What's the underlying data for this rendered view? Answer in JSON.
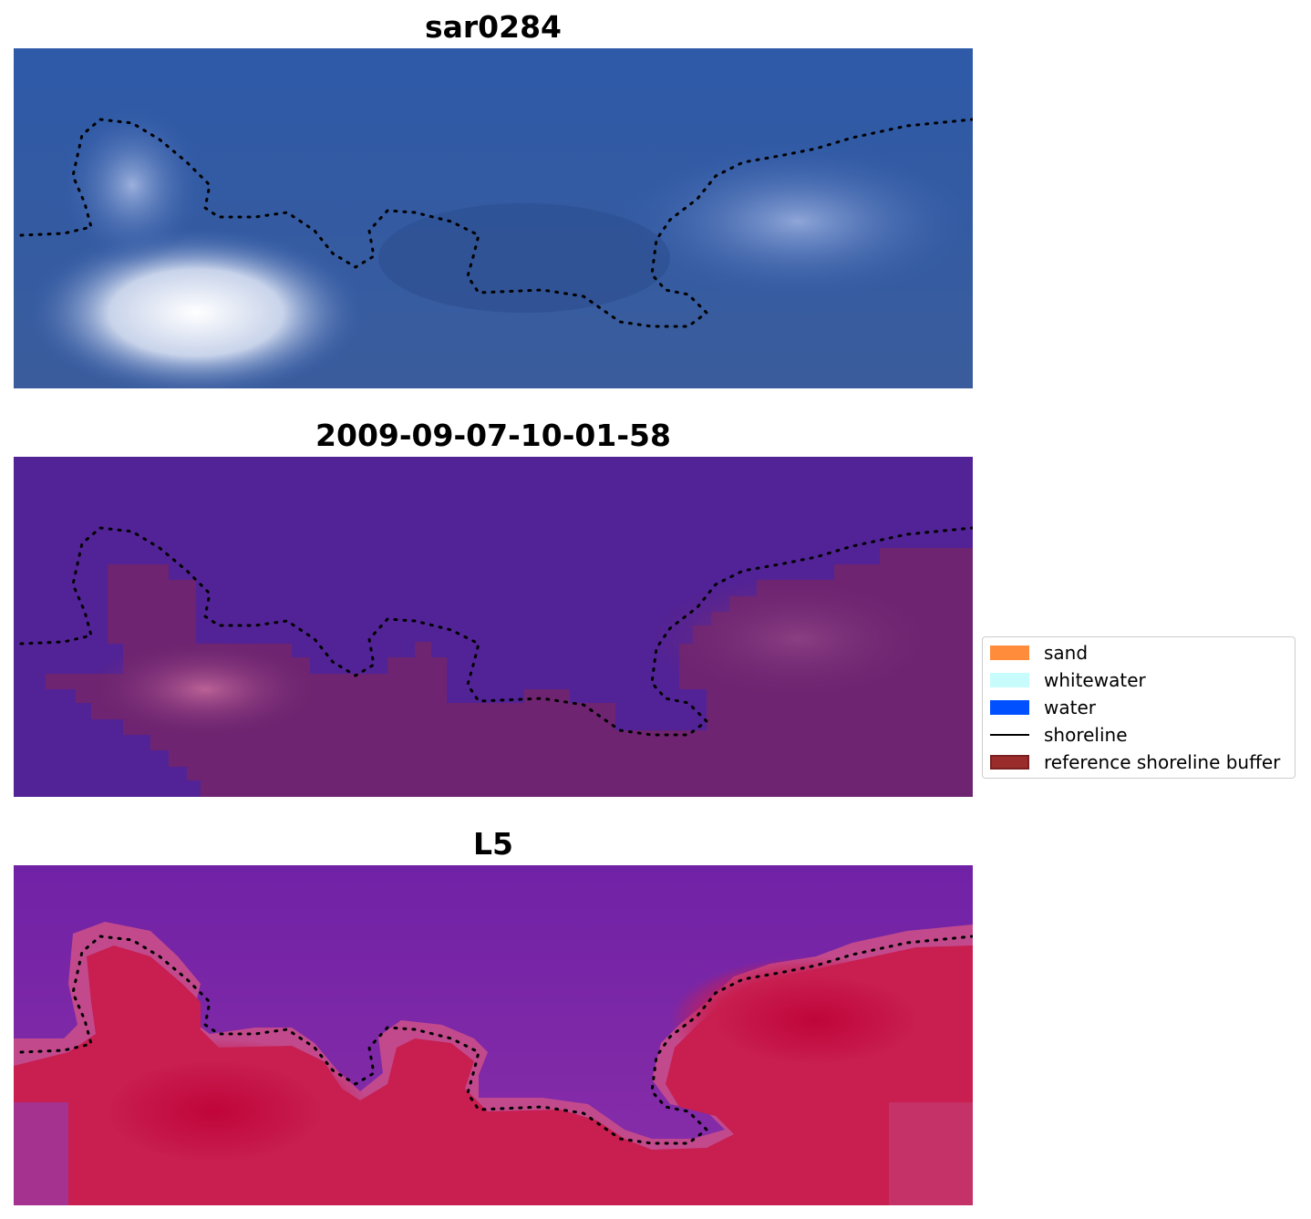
{
  "panels": [
    {
      "title": "sar0284",
      "style": "rgb"
    },
    {
      "title": "2009-09-07-10-01-58",
      "style": "classified"
    },
    {
      "title": "L5",
      "style": "probability"
    }
  ],
  "legend": {
    "items": [
      {
        "label": "sand",
        "color": "#ff8c3a",
        "kind": "patch"
      },
      {
        "label": "whitewater",
        "color": "#c8fcfc",
        "kind": "patch"
      },
      {
        "label": "water",
        "color": "#0050ff",
        "kind": "patch"
      },
      {
        "label": "shoreline",
        "color": "#000000",
        "kind": "line"
      },
      {
        "label": "reference shoreline buffer",
        "color": "#9b2c2c",
        "kind": "patch"
      }
    ]
  },
  "colors": {
    "rgb_water": "#2f58a8",
    "rgb_foam": "#ffffff",
    "class_water": "#522396",
    "class_land": "#6e2470",
    "prob_low": "#7a22a8",
    "prob_high": "#c0053a"
  }
}
